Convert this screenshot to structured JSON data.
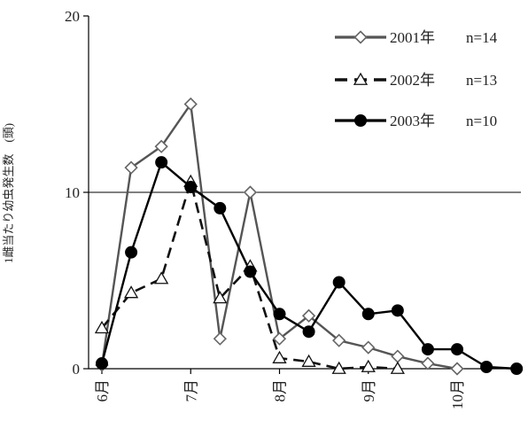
{
  "chart_data": {
    "type": "line",
    "ylabel": "1雌当たり幼虫発生数　(頭)",
    "ylim": [
      0,
      20
    ],
    "yticks": [
      0,
      10,
      20
    ],
    "xlim": [
      6.0,
      10.75
    ],
    "xticks": [
      {
        "value": 6,
        "label": "6月"
      },
      {
        "value": 7,
        "label": "7月"
      },
      {
        "value": 8,
        "label": "8月"
      },
      {
        "value": 9,
        "label": "9月"
      },
      {
        "value": 10,
        "label": "10月"
      }
    ],
    "reference_line": 10,
    "grid": false,
    "legend_position": "top-right",
    "series": [
      {
        "name": "2001年",
        "n_label": "n=14",
        "color": "#555555",
        "dash": "solid",
        "marker": "diamond-open",
        "x": [
          6.0,
          6.33,
          6.67,
          7.0,
          7.33,
          7.67,
          8.0,
          8.33,
          8.67,
          9.0,
          9.33,
          9.67,
          10.0
        ],
        "values": [
          0.2,
          11.4,
          12.6,
          15.0,
          1.7,
          10.0,
          1.7,
          3.0,
          1.6,
          1.2,
          0.7,
          0.3,
          0.0
        ]
      },
      {
        "name": "2002年",
        "n_label": "n=13",
        "color": "#111111",
        "dash": "dashed",
        "marker": "triangle-open",
        "x": [
          6.0,
          6.33,
          6.67,
          7.0,
          7.33,
          7.67,
          8.0,
          8.33,
          8.67,
          9.0,
          9.33
        ],
        "values": [
          2.3,
          4.3,
          5.1,
          10.6,
          4.0,
          5.8,
          0.6,
          0.4,
          0.0,
          0.1,
          0.0
        ]
      },
      {
        "name": "2003年",
        "n_label": "n=10",
        "color": "#000000",
        "dash": "solid",
        "marker": "circle-filled",
        "x": [
          6.0,
          6.33,
          6.67,
          7.0,
          7.33,
          7.67,
          8.0,
          8.33,
          8.67,
          9.0,
          9.33,
          9.67,
          10.0,
          10.33,
          10.67
        ],
        "values": [
          0.3,
          6.6,
          11.7,
          10.3,
          9.1,
          5.5,
          3.1,
          2.1,
          4.9,
          3.1,
          3.3,
          1.1,
          1.1,
          0.1,
          0.0
        ]
      }
    ]
  }
}
